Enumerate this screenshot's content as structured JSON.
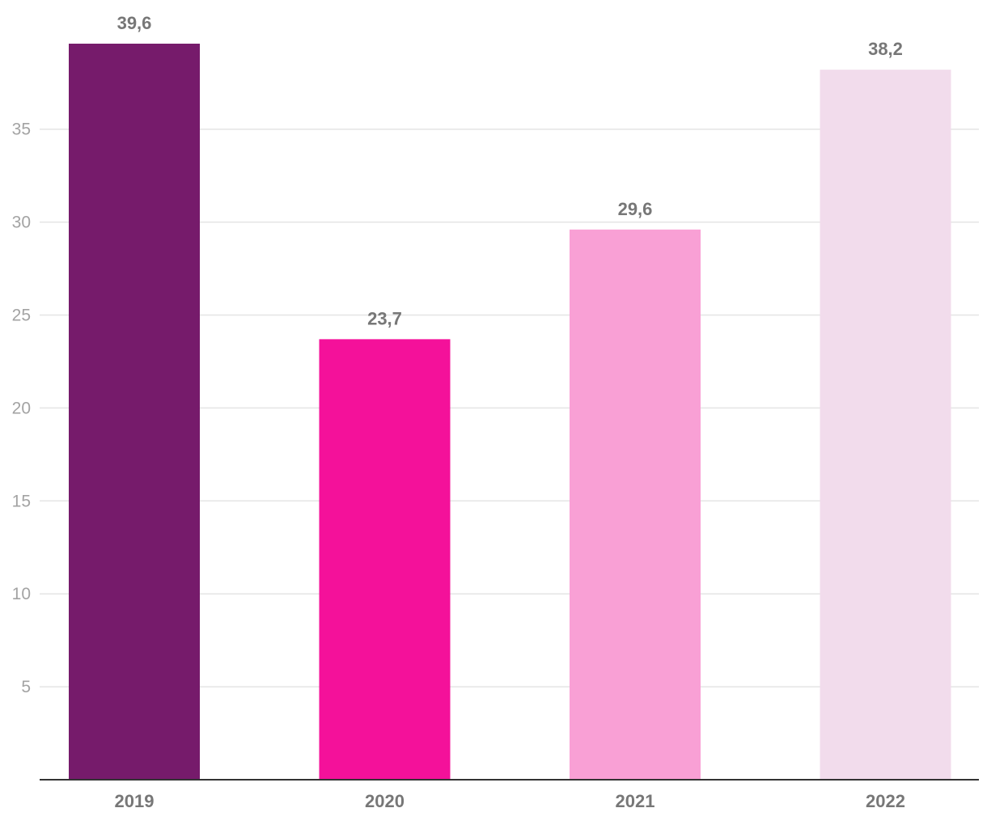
{
  "chart_data": {
    "type": "bar",
    "title": "",
    "xlabel": "",
    "ylabel": "",
    "categories": [
      "2019",
      "2020",
      "2021",
      "2022"
    ],
    "values": [
      39.6,
      23.7,
      29.6,
      38.2
    ],
    "data_labels": [
      "39,6",
      "23,7",
      "29,6",
      "38,2"
    ],
    "colors": [
      "#761B6B",
      "#F4119A",
      "#F9A0D5",
      "#F2DCEC"
    ],
    "ylim": [
      0,
      40
    ],
    "yticks": [
      5,
      10,
      15,
      20,
      25,
      30,
      35
    ],
    "ytick_labels": [
      "5",
      "10",
      "15",
      "20",
      "25",
      "30",
      "35"
    ],
    "grid": true,
    "legend": "none"
  }
}
